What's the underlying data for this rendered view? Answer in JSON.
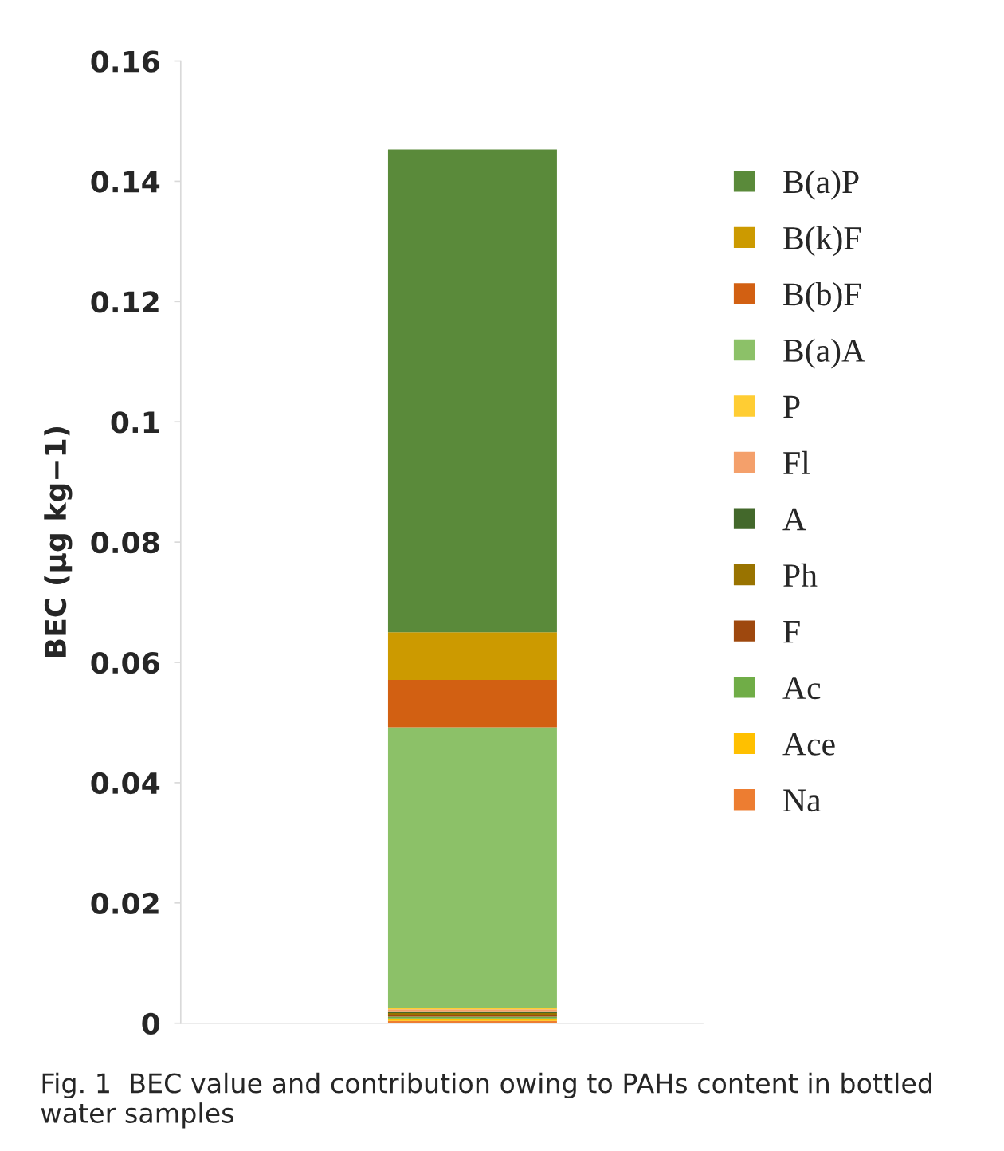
{
  "chart_data": {
    "type": "bar",
    "stacked": true,
    "categories": [
      null
    ],
    "ylabel": "BEC (µg kg−1)",
    "ylim": [
      0,
      0.16
    ],
    "yticks": [
      {
        "value": 0,
        "label": "0"
      },
      {
        "value": 0.02,
        "label": "0.02"
      },
      {
        "value": 0.04,
        "label": "0.04"
      },
      {
        "value": 0.06,
        "label": "0.06"
      },
      {
        "value": 0.08,
        "label": "0.08"
      },
      {
        "value": 0.1,
        "label": "0.1"
      },
      {
        "value": 0.12,
        "label": "0.12"
      },
      {
        "value": 0.14,
        "label": "0.14"
      },
      {
        "value": 0.16,
        "label": "0.16"
      }
    ],
    "tick_labels": "y",
    "grid": false,
    "legend": "right",
    "annotations": [
      "Fig. 1  BEC value and contribution owing to PAHs content in bottled water samples"
    ],
    "series": [
      {
        "name": "Na",
        "color": "#ed7d31",
        "values": [
          0.0004
        ]
      },
      {
        "name": "Ace",
        "color": "#ffc000",
        "values": [
          0.0004
        ]
      },
      {
        "name": "Ac",
        "color": "#70ad47",
        "values": [
          0.0003
        ]
      },
      {
        "name": "F",
        "color": "#9e480e",
        "values": [
          0.0003
        ]
      },
      {
        "name": "Ph",
        "color": "#997300",
        "values": [
          0.0003
        ]
      },
      {
        "name": "A",
        "color": "#43682b",
        "values": [
          0.0003
        ]
      },
      {
        "name": "Fl",
        "color": "#f4a06b",
        "values": [
          0.0003
        ]
      },
      {
        "name": "P",
        "color": "#ffcd33",
        "values": [
          0.0003
        ]
      },
      {
        "name": "B(a)A",
        "color": "#8cc168",
        "values": [
          0.0466
        ]
      },
      {
        "name": "B(b)F",
        "color": "#d26012",
        "values": [
          0.0079
        ]
      },
      {
        "name": "B(k)F",
        "color": "#cc9a00",
        "values": [
          0.0079
        ]
      },
      {
        "name": "B(a)P",
        "color": "#5a8a3a",
        "values": [
          0.0803
        ]
      }
    ]
  }
}
